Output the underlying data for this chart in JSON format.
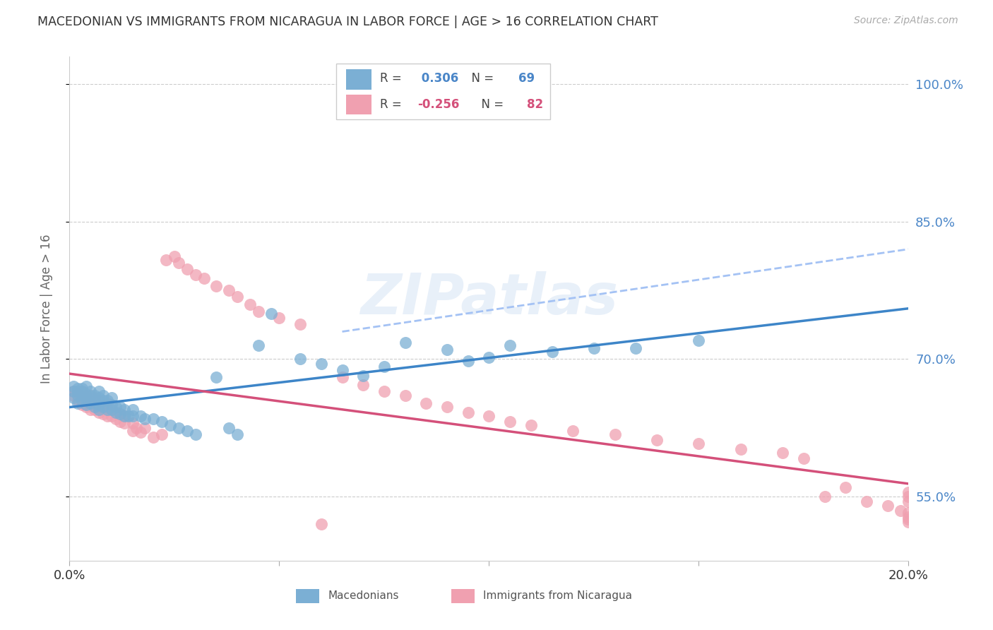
{
  "title": "MACEDONIAN VS IMMIGRANTS FROM NICARAGUA IN LABOR FORCE | AGE > 16 CORRELATION CHART",
  "source": "Source: ZipAtlas.com",
  "ylabel": "In Labor Force | Age > 16",
  "xlim": [
    0.0,
    0.2
  ],
  "ylim": [
    0.48,
    1.03
  ],
  "yticks": [
    0.55,
    0.7,
    0.85,
    1.0
  ],
  "ytick_labels": [
    "55.0%",
    "70.0%",
    "85.0%",
    "100.0%"
  ],
  "xticks": [
    0.0,
    0.05,
    0.1,
    0.15,
    0.2
  ],
  "blue_r": 0.306,
  "blue_n": 69,
  "pink_r": -0.256,
  "pink_n": 82,
  "blue_color": "#7bafd4",
  "pink_color": "#f0a0b0",
  "blue_line_color": "#3d85c8",
  "pink_line_color": "#d4507a",
  "blue_dash_color": "#a4c2f4",
  "watermark": "ZIPatlas",
  "background_color": "#ffffff",
  "grid_color": "#cccccc",
  "right_tick_color": "#4a86c8",
  "title_color": "#333333",
  "legend_r_color": "#444444",
  "legend_blue_val_color": "#4a86c8",
  "legend_pink_val_color": "#d4507a",
  "blue_x": [
    0.001,
    0.001,
    0.001,
    0.002,
    0.002,
    0.002,
    0.002,
    0.003,
    0.003,
    0.003,
    0.003,
    0.004,
    0.004,
    0.004,
    0.004,
    0.005,
    0.005,
    0.005,
    0.006,
    0.006,
    0.006,
    0.007,
    0.007,
    0.007,
    0.007,
    0.008,
    0.008,
    0.008,
    0.009,
    0.009,
    0.01,
    0.01,
    0.01,
    0.011,
    0.011,
    0.012,
    0.012,
    0.013,
    0.013,
    0.014,
    0.015,
    0.015,
    0.017,
    0.018,
    0.02,
    0.022,
    0.024,
    0.026,
    0.028,
    0.03,
    0.035,
    0.038,
    0.04,
    0.045,
    0.048,
    0.055,
    0.06,
    0.065,
    0.07,
    0.075,
    0.08,
    0.09,
    0.095,
    0.1,
    0.105,
    0.115,
    0.125,
    0.135,
    0.15
  ],
  "blue_y": [
    0.658,
    0.665,
    0.67,
    0.652,
    0.66,
    0.665,
    0.668,
    0.655,
    0.66,
    0.665,
    0.668,
    0.65,
    0.658,
    0.662,
    0.67,
    0.652,
    0.66,
    0.665,
    0.648,
    0.655,
    0.66,
    0.645,
    0.65,
    0.658,
    0.665,
    0.648,
    0.655,
    0.66,
    0.645,
    0.655,
    0.645,
    0.65,
    0.658,
    0.642,
    0.648,
    0.64,
    0.648,
    0.638,
    0.645,
    0.638,
    0.638,
    0.645,
    0.638,
    0.635,
    0.635,
    0.632,
    0.628,
    0.625,
    0.622,
    0.618,
    0.68,
    0.625,
    0.618,
    0.715,
    0.75,
    0.7,
    0.695,
    0.688,
    0.682,
    0.692,
    0.718,
    0.71,
    0.698,
    0.702,
    0.715,
    0.708,
    0.712,
    0.712,
    0.72
  ],
  "pink_x": [
    0.001,
    0.001,
    0.002,
    0.002,
    0.003,
    0.003,
    0.003,
    0.004,
    0.004,
    0.004,
    0.005,
    0.005,
    0.005,
    0.006,
    0.006,
    0.006,
    0.007,
    0.007,
    0.007,
    0.008,
    0.008,
    0.009,
    0.009,
    0.009,
    0.01,
    0.01,
    0.011,
    0.011,
    0.012,
    0.012,
    0.013,
    0.013,
    0.015,
    0.015,
    0.016,
    0.017,
    0.018,
    0.02,
    0.022,
    0.023,
    0.025,
    0.026,
    0.028,
    0.03,
    0.032,
    0.035,
    0.038,
    0.04,
    0.043,
    0.045,
    0.05,
    0.055,
    0.06,
    0.065,
    0.07,
    0.075,
    0.08,
    0.085,
    0.09,
    0.095,
    0.1,
    0.105,
    0.11,
    0.12,
    0.13,
    0.14,
    0.15,
    0.16,
    0.17,
    0.175,
    0.18,
    0.185,
    0.19,
    0.195,
    0.198,
    0.2,
    0.2,
    0.2,
    0.2,
    0.2,
    0.2,
    0.2
  ],
  "pink_y": [
    0.66,
    0.665,
    0.655,
    0.662,
    0.65,
    0.658,
    0.665,
    0.648,
    0.655,
    0.66,
    0.645,
    0.652,
    0.66,
    0.645,
    0.65,
    0.658,
    0.642,
    0.648,
    0.655,
    0.64,
    0.648,
    0.638,
    0.645,
    0.652,
    0.638,
    0.645,
    0.635,
    0.642,
    0.632,
    0.64,
    0.63,
    0.638,
    0.622,
    0.63,
    0.625,
    0.62,
    0.625,
    0.615,
    0.618,
    0.808,
    0.812,
    0.805,
    0.798,
    0.792,
    0.788,
    0.78,
    0.775,
    0.768,
    0.76,
    0.752,
    0.745,
    0.738,
    0.52,
    0.68,
    0.672,
    0.665,
    0.66,
    0.652,
    0.648,
    0.642,
    0.638,
    0.632,
    0.628,
    0.622,
    0.618,
    0.612,
    0.608,
    0.602,
    0.598,
    0.592,
    0.55,
    0.56,
    0.545,
    0.54,
    0.535,
    0.532,
    0.528,
    0.525,
    0.522,
    0.555,
    0.55,
    0.545
  ]
}
